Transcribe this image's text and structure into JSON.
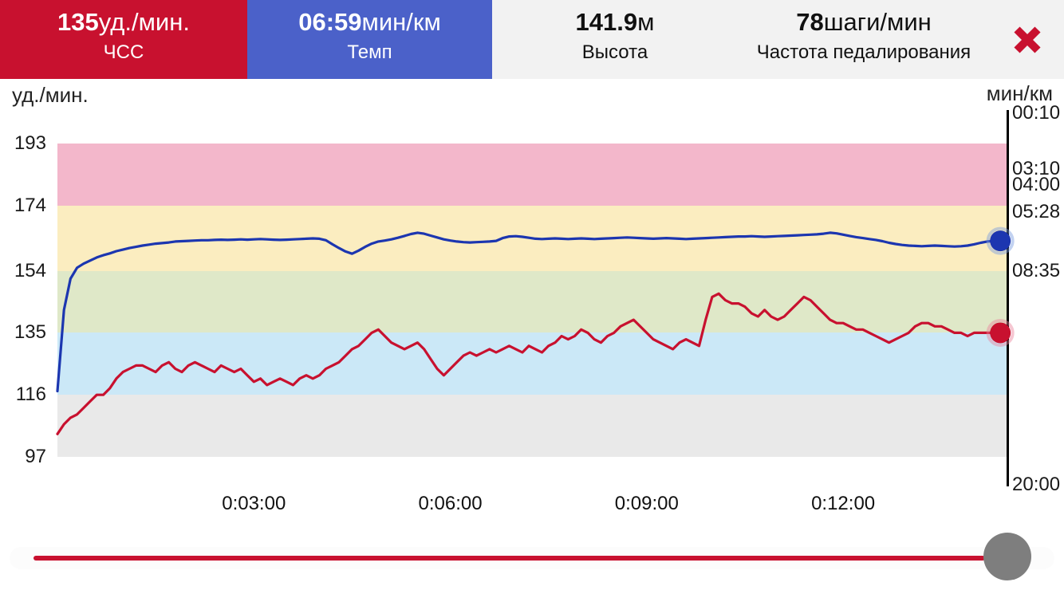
{
  "colors": {
    "accent_red": "#c8112f",
    "tile_blue": "#4b61c9",
    "line_blue": "#1c36b0",
    "tile_gray_bg": "#f2f2f2",
    "handle_gray": "#7e7e7e",
    "zone_pink": "#f3b7cb",
    "zone_yellow": "#fbedc0",
    "zone_green": "#dfe8c8",
    "zone_blue": "#cbe8f7",
    "zone_gray": "#e9e9e9"
  },
  "topbar": {
    "tiles": [
      {
        "id": "hr",
        "value": "135",
        "unit": "уд./мин.",
        "label": "ЧСС",
        "bg": "#c8112f",
        "fg": "#ffffff"
      },
      {
        "id": "pace",
        "value": "06:59",
        "unit": "мин/км",
        "label": "Темп",
        "bg": "#4b61c9",
        "fg": "#ffffff"
      },
      {
        "id": "altitude",
        "value": "141.9",
        "unit": "м",
        "label": "Высота",
        "bg": "#f2f2f2",
        "fg": "#111111"
      },
      {
        "id": "cadence",
        "value": "78",
        "unit": "шаги/мин",
        "label": "Частота педалирования",
        "bg": "#f2f2f2",
        "fg": "#111111"
      }
    ],
    "close": {
      "icon": "close-x",
      "color": "#c8112f"
    }
  },
  "chart_data": {
    "type": "line",
    "title": "",
    "left_axis": {
      "title": "уд./мин.",
      "unit": "bpm",
      "min": 97,
      "max": 193,
      "ticks": [
        193,
        174,
        154,
        135,
        116,
        97
      ]
    },
    "right_axis": {
      "title": "мин/км",
      "unit": "min/km",
      "ticks": [
        {
          "label": "00:10",
          "sec": 10
        },
        {
          "label": "03:10",
          "sec": 190
        },
        {
          "label": "04:00",
          "sec": 240
        },
        {
          "label": "05:28",
          "sec": 328
        },
        {
          "label": "08:35",
          "sec": 515
        },
        {
          "label": "20:00",
          "sec": 1200
        }
      ]
    },
    "x_axis": {
      "unit": "h:mm:ss",
      "t_end_min": 14.52,
      "ticks": [
        {
          "label": "0:03:00",
          "t": 3
        },
        {
          "label": "0:06:00",
          "t": 6
        },
        {
          "label": "0:09:00",
          "t": 9
        },
        {
          "label": "0:12:00",
          "t": 12
        }
      ]
    },
    "zones": [
      {
        "from": 174,
        "to": 193,
        "color": "#f3b7cb"
      },
      {
        "from": 154,
        "to": 174,
        "color": "#fbedc0"
      },
      {
        "from": 135,
        "to": 154,
        "color": "#dfe8c8"
      },
      {
        "from": 116,
        "to": 135,
        "color": "#cbe8f7"
      },
      {
        "from": 97,
        "to": 116,
        "color": "#e9e9e9"
      }
    ],
    "series": [
      {
        "name": "ЧСС",
        "unit": "уд./мин.",
        "axis": "left",
        "color": "#c8112f",
        "halo": "rgba(235,130,155,0.45)",
        "t_start": 0,
        "t_step": 0.1,
        "values": [
          104,
          107,
          109,
          110,
          112,
          114,
          116,
          116,
          118,
          121,
          123,
          124,
          125,
          125,
          124,
          123,
          125,
          126,
          124,
          123,
          125,
          126,
          125,
          124,
          123,
          125,
          124,
          123,
          124,
          122,
          120,
          121,
          119,
          120,
          121,
          120,
          119,
          121,
          122,
          121,
          122,
          124,
          125,
          126,
          128,
          130,
          131,
          133,
          135,
          136,
          134,
          132,
          131,
          130,
          131,
          132,
          130,
          127,
          124,
          122,
          124,
          126,
          128,
          129,
          128,
          129,
          130,
          129,
          130,
          131,
          130,
          129,
          131,
          130,
          129,
          131,
          132,
          134,
          133,
          134,
          136,
          135,
          133,
          132,
          134,
          135,
          137,
          138,
          139,
          137,
          135,
          133,
          132,
          131,
          130,
          132,
          133,
          132,
          131,
          139,
          146,
          147,
          145,
          144,
          144,
          143,
          141,
          140,
          142,
          140,
          139,
          140,
          142,
          144,
          146,
          145,
          143,
          141,
          139,
          138,
          138,
          137,
          136,
          136,
          135,
          134,
          133,
          132,
          133,
          134,
          135,
          137,
          138,
          138,
          137,
          137,
          136,
          135,
          135,
          134,
          135,
          135,
          135,
          135,
          135
        ]
      },
      {
        "name": "Темп",
        "unit": "сек/км",
        "axis": "right",
        "color": "#1c36b0",
        "halo": "rgba(120,155,225,0.45)",
        "t_start": 0,
        "t_step": 0.1,
        "values": [
          900,
          640,
          540,
          505,
          492,
          482,
          472,
          465,
          459,
          452,
          447,
          442,
          438,
          434,
          431,
          428,
          426,
          424,
          421,
          420,
          419,
          418,
          417,
          417,
          416,
          415,
          416,
          415,
          414,
          415,
          414,
          413,
          414,
          415,
          416,
          415,
          414,
          413,
          412,
          411,
          412,
          417,
          430,
          442,
          453,
          460,
          450,
          438,
          428,
          421,
          418,
          414,
          409,
          403,
          397,
          393,
          396,
          402,
          408,
          414,
          418,
          421,
          423,
          424,
          423,
          422,
          421,
          419,
          410,
          405,
          404,
          406,
          409,
          412,
          413,
          412,
          411,
          412,
          413,
          412,
          411,
          412,
          413,
          412,
          411,
          410,
          409,
          408,
          409,
          410,
          411,
          412,
          411,
          410,
          411,
          412,
          413,
          412,
          411,
          410,
          409,
          408,
          407,
          406,
          405,
          405,
          404,
          405,
          406,
          405,
          404,
          403,
          402,
          401,
          400,
          399,
          398,
          396,
          393,
          395,
          399,
          403,
          407,
          410,
          413,
          416,
          420,
          425,
          429,
          432,
          434,
          435,
          436,
          435,
          434,
          435,
          436,
          437,
          436,
          434,
          430,
          425,
          421,
          419,
          419
        ]
      }
    ],
    "cursor": {
      "t_min": 14.4,
      "hr_bpm": 135,
      "pace": "06:59"
    }
  },
  "slider": {
    "progress_percent": 100
  }
}
